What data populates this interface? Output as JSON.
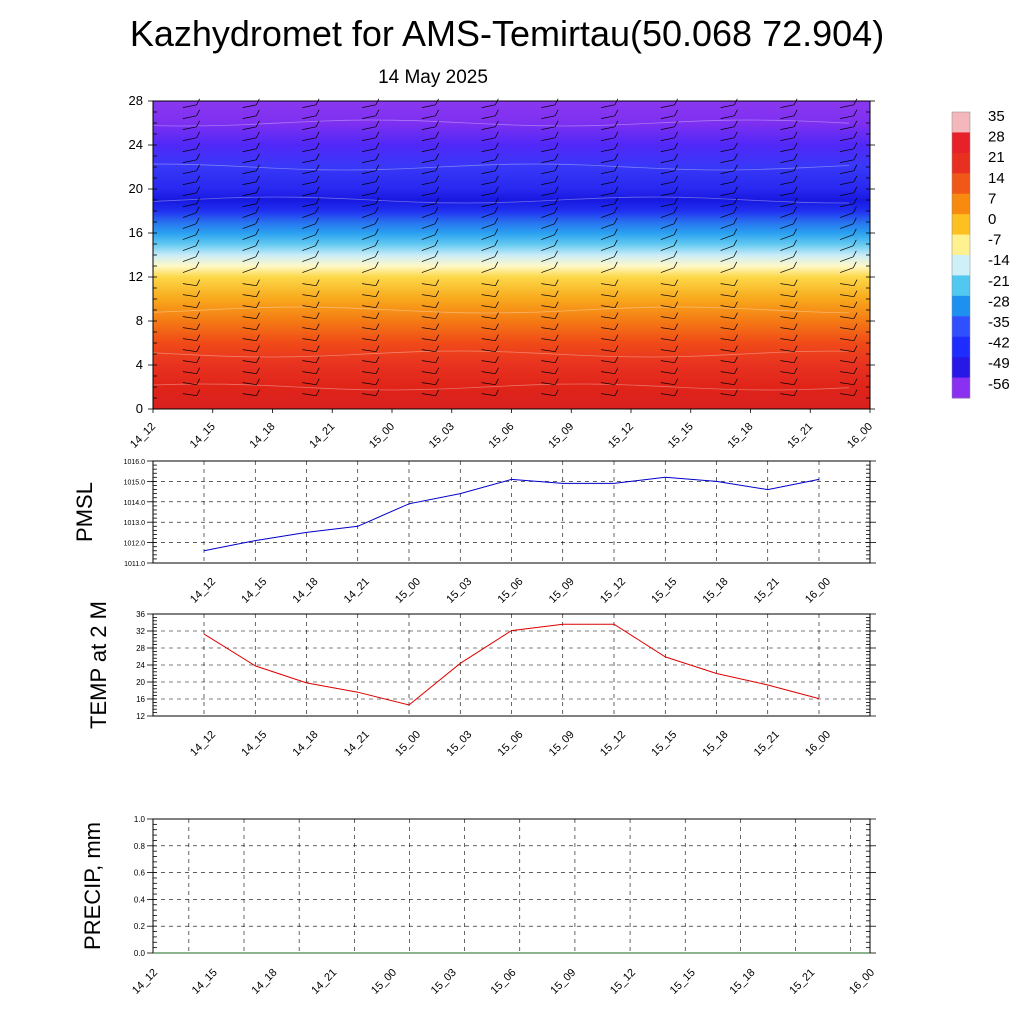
{
  "header": {
    "title": "Kazhydromet for AMS-Temirtau(50.068 72.904)",
    "date": "14 May 2025"
  },
  "chart_data": [
    {
      "type": "heatmap",
      "x_ticks": [
        "14_12",
        "14_15",
        "14_18",
        "14_21",
        "15_00",
        "15_03",
        "15_06",
        "15_09",
        "15_12",
        "15_15",
        "15_18",
        "15_21",
        "16_00"
      ],
      "y_ticks": [
        "0",
        "4",
        "8",
        "12",
        "16",
        "20",
        "24",
        "28"
      ],
      "ylim": [
        0,
        28
      ],
      "colorbar": {
        "labels": [
          "35",
          "28",
          "21",
          "14",
          "7",
          "0",
          "-7",
          "-14",
          "-21",
          "-28",
          "-35",
          "-42",
          "-49",
          "-56"
        ],
        "colors": [
          "#f4b8bc",
          "#e8202a",
          "#e83020",
          "#f05818",
          "#f88a10",
          "#fcc020",
          "#fff090",
          "#d0f0f8",
          "#50c8f0",
          "#1e90f0",
          "#3050ff",
          "#1e2cff",
          "#2818e8",
          "#8a30f0"
        ]
      },
      "field": {
        "levels": [
          0,
          2,
          4,
          6,
          8,
          10,
          12,
          13,
          14,
          15,
          16,
          17,
          18,
          19,
          20,
          22,
          24,
          26,
          28
        ],
        "colors": [
          "#d82020",
          "#e02418",
          "#e83220",
          "#f04a18",
          "#f47a14",
          "#f8a81c",
          "#fcd848",
          "#fff8c8",
          "#c8ecf8",
          "#60c8f0",
          "#2aa0f0",
          "#2870f0",
          "#2030f0",
          "#1818e0",
          "#2828f0",
          "#3838f8",
          "#5028f8",
          "#7e30f0",
          "#8a38f0"
        ]
      },
      "wind_barbs": true,
      "grid": false
    },
    {
      "type": "line",
      "ylabel": "PMSL",
      "x": [
        "14_12",
        "14_15",
        "14_18",
        "14_21",
        "15_00",
        "15_03",
        "15_06",
        "15_09",
        "15_12",
        "15_15",
        "15_18",
        "15_21",
        "16_00"
      ],
      "series": [
        {
          "values": [
            1011.6,
            1012.1,
            1012.5,
            1012.8,
            1013.9,
            1014.4,
            1015.1,
            1014.9,
            1014.9,
            1015.2,
            1015.0,
            1014.6,
            1015.1
          ],
          "color": "#0000cc"
        }
      ],
      "ylim": [
        1011.0,
        1016.0
      ],
      "y_ticks": [
        "1011.0",
        "1012.0",
        "1013.0",
        "1014.0",
        "1015.0",
        "1016.0"
      ],
      "grid": true
    },
    {
      "type": "line",
      "ylabel": "TEMP at 2 M",
      "x": [
        "14_12",
        "14_15",
        "14_18",
        "14_21",
        "15_00",
        "15_03",
        "15_06",
        "15_09",
        "15_12",
        "15_15",
        "15_18",
        "15_21",
        "16_00"
      ],
      "series": [
        {
          "values": [
            31.3,
            23.8,
            19.8,
            17.6,
            14.6,
            24.4,
            32.1,
            33.6,
            33.6,
            25.9,
            22.0,
            19.3,
            16.1
          ],
          "color": "#dd0000"
        }
      ],
      "ylim": [
        12,
        36
      ],
      "y_ticks": [
        "12",
        "16",
        "20",
        "24",
        "28",
        "32",
        "36"
      ],
      "grid": true
    },
    {
      "type": "line",
      "ylabel": "PRECIP, mm",
      "x": [
        "14_12",
        "14_15",
        "14_18",
        "14_21",
        "15_00",
        "15_03",
        "15_06",
        "15_09",
        "15_12",
        "15_15",
        "15_18",
        "15_21",
        "16_00"
      ],
      "x_ticks": [
        "14_12",
        "14_15",
        "14_18",
        "14_21",
        "15_00",
        "15_03",
        "15_06",
        "15_09",
        "15_12",
        "15_15",
        "15_18",
        "15_21",
        "16_00"
      ],
      "series": [
        {
          "values": [
            0,
            0,
            0,
            0,
            0,
            0,
            0,
            0,
            0,
            0,
            0,
            0,
            0
          ],
          "color": "#1a6a1a"
        }
      ],
      "ylim": [
        0.0,
        1.0
      ],
      "y_ticks": [
        "0.0",
        "0.2",
        "0.4",
        "0.6",
        "0.8",
        "1.0"
      ],
      "grid": true
    }
  ]
}
